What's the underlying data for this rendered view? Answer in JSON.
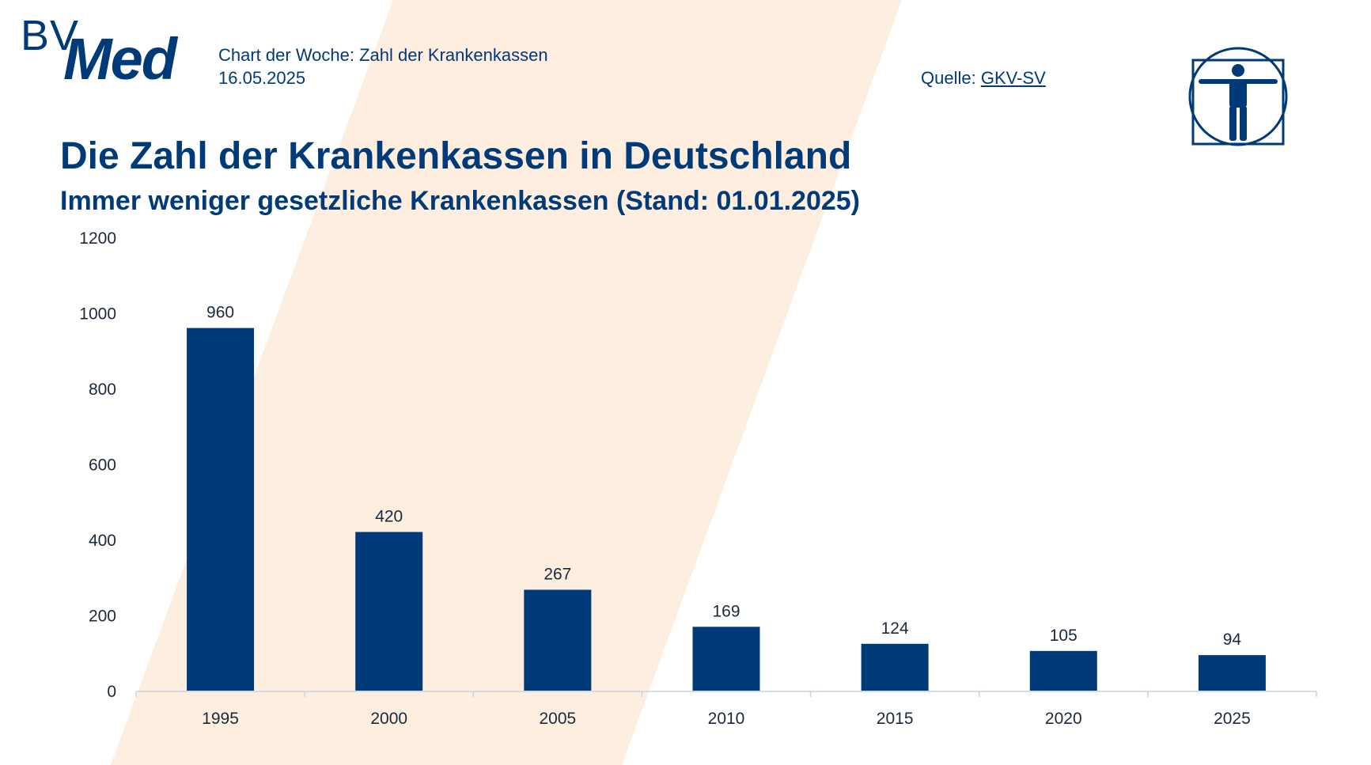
{
  "header": {
    "logo_bv": "BV",
    "logo_med": "Med",
    "chart_label": "Chart der Woche: Zahl der Krankenkassen",
    "date": "16.05.2025",
    "source_prefix": "Quelle: ",
    "source_link": "GKV-SV",
    "emblem_icon": "vitruvian-man-icon"
  },
  "colors": {
    "bar": "#003a78",
    "background_band": "#fdeee0",
    "text": "#003a78",
    "axis_line": "#c6d3e2"
  },
  "chart_data": {
    "type": "bar",
    "title": "Die Zahl der Krankenkassen in Deutschland",
    "subtitle": "Immer weniger gesetzliche Krankenkassen (Stand: 01.01.2025)",
    "categories": [
      "1995",
      "2000",
      "2005",
      "2010",
      "2015",
      "2020",
      "2025"
    ],
    "values": [
      960,
      420,
      267,
      169,
      124,
      105,
      94
    ],
    "ylim": [
      0,
      1200
    ],
    "yticks": [
      0,
      200,
      400,
      600,
      800,
      1000,
      1200
    ],
    "xlabel": "",
    "ylabel": "",
    "grid": false,
    "legend": "none",
    "data_labels": true
  }
}
